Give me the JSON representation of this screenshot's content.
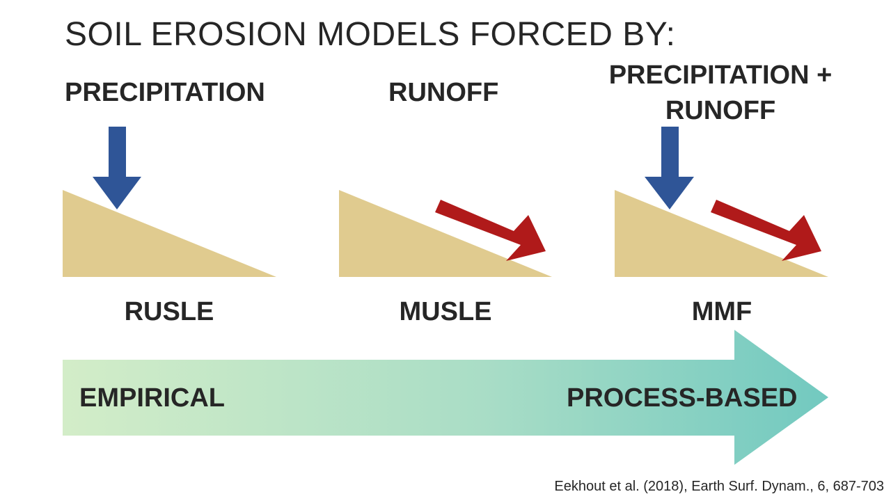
{
  "title": "SOIL EROSION MODELS FORCED BY:",
  "columns": [
    {
      "forcing_lines": [
        "PRECIPITATION"
      ],
      "model": "RUSLE",
      "arrows": [
        "precipitation"
      ]
    },
    {
      "forcing_lines": [
        "RUNOFF"
      ],
      "model": "MUSLE",
      "arrows": [
        "runoff"
      ]
    },
    {
      "forcing_lines": [
        "PRECIPITATION +",
        "RUNOFF"
      ],
      "model": "MMF",
      "arrows": [
        "precipitation",
        "runoff"
      ]
    }
  ],
  "scale": {
    "left_label": "EMPIRICAL",
    "right_label": "PROCESS-BASED",
    "gradient_start_color": "#d3edc8",
    "gradient_end_color": "#72c9c0"
  },
  "colors": {
    "slope": "#e0cb8f",
    "precipitation_arrow": "#2f5597",
    "runoff_arrow": "#b01a1a"
  },
  "citation": "Eekhout et al. (2018), Earth Surf. Dynam., 6, 687-703"
}
